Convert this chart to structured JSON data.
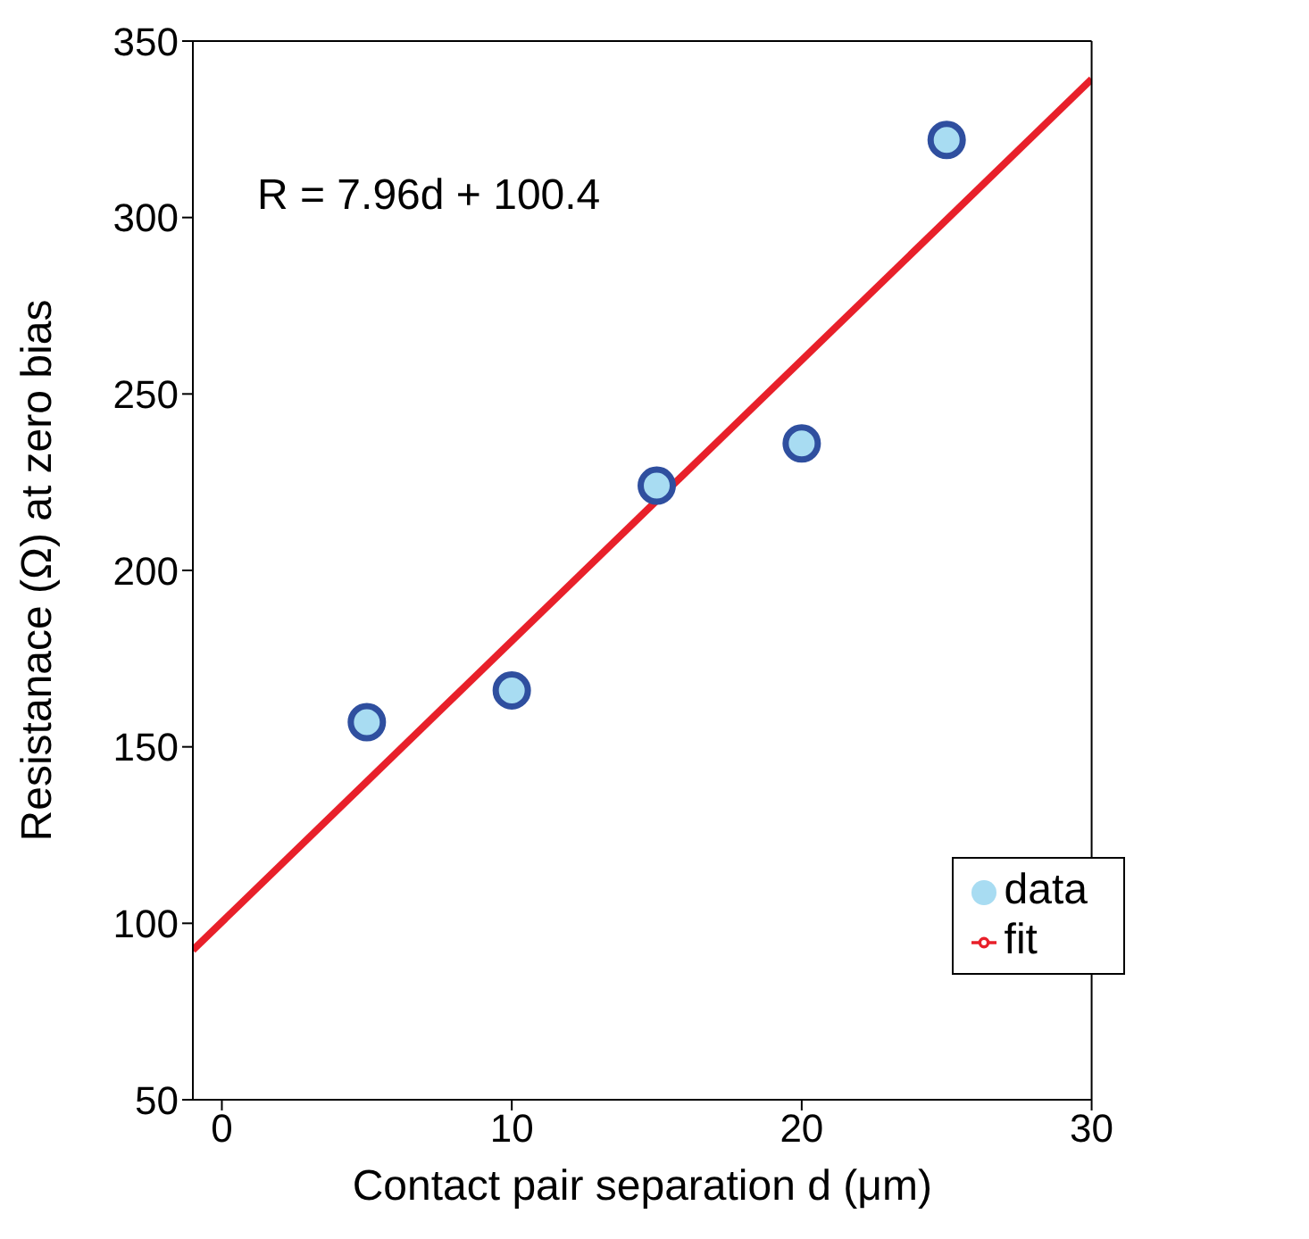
{
  "chart_data": {
    "type": "scatter",
    "xlabel": "Contact pair separation d (μm)",
    "ylabel": "Resistanace (Ω) at zero bias",
    "annotations": [
      "R = 7.96d + 100.4"
    ],
    "xlim": [
      -1,
      30
    ],
    "xticks": [
      0,
      10,
      20,
      30
    ],
    "ylim": [
      50,
      350
    ],
    "yticks": [
      50,
      100,
      150,
      200,
      250,
      300,
      350
    ],
    "grid": false,
    "legend": "bottom right",
    "series": [
      {
        "name": "data",
        "marker": "circle",
        "color": "#2f4f9f",
        "x": [
          5,
          10,
          15,
          20,
          25
        ],
        "values": [
          157,
          166,
          224,
          236,
          322
        ]
      },
      {
        "name": "fit",
        "type": "line",
        "marker": "none",
        "line_style": "solid",
        "color": "#e8202a",
        "x": [
          -1,
          30
        ],
        "values": [
          92.4,
          339.2
        ]
      }
    ]
  }
}
